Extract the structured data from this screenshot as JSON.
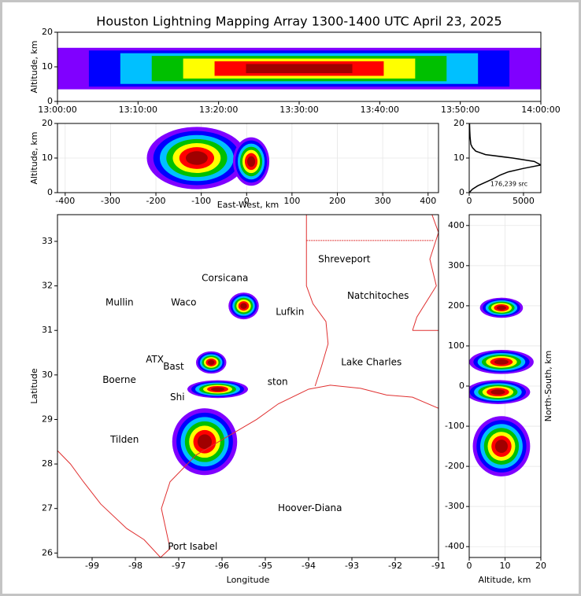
{
  "title": "Houston Lightning Mapping Array 1300-1400 UTC April 23, 2025",
  "chart_data": [
    {
      "type": "band",
      "ylabel": "Altitude, km",
      "xlim": [
        0,
        60
      ],
      "ylim": [
        0,
        20
      ],
      "xticks": [
        {
          "value": 0,
          "label": "13:00:00"
        },
        {
          "value": 10,
          "label": "13:10:00"
        },
        {
          "value": 20,
          "label": "13:20:00"
        },
        {
          "value": 30,
          "label": "13:30:00"
        },
        {
          "value": 40,
          "label": "13:40:00"
        },
        {
          "value": 50,
          "label": "13:50:00"
        },
        {
          "value": 60,
          "label": "14:00:00"
        }
      ],
      "yticks": [
        0,
        10,
        20
      ],
      "cells": [
        {
          "x": 30,
          "y": 9.5,
          "rx": 30,
          "ry": 6
        }
      ]
    },
    {
      "type": "density",
      "xlabel": "East-West, km",
      "ylabel": "Altitude, km",
      "xlim": [
        -417,
        423
      ],
      "ylim": [
        0,
        20
      ],
      "grid": true,
      "xticks": [
        -400,
        -300,
        -200,
        -100,
        0,
        100,
        200,
        300,
        400
      ],
      "yticks": [
        0,
        10,
        20
      ],
      "cells": [
        {
          "x": -110,
          "y": 10,
          "rx": 110,
          "ry": 9
        },
        {
          "x": 10,
          "y": 9,
          "rx": 40,
          "ry": 7
        }
      ]
    },
    {
      "type": "line",
      "annotation": "176,239 src",
      "xlim": [
        0,
        6600
      ],
      "ylim": [
        0,
        20
      ],
      "grid": true,
      "xticks": [
        0,
        5000
      ],
      "yticks": [
        0,
        10,
        20
      ],
      "counts": [
        0,
        300,
        800,
        1500,
        2200,
        2800,
        3600,
        5000,
        6600,
        6000,
        4000,
        1500,
        600,
        300,
        150,
        80,
        50,
        30
      ],
      "altitudes": [
        0,
        1,
        2,
        3,
        4,
        5,
        6,
        7,
        8,
        9,
        10,
        11,
        12,
        13,
        14,
        16,
        18,
        20
      ]
    },
    {
      "type": "map",
      "xlabel": "Longitude",
      "ylabel": "Latitude",
      "xlim": [
        -99.8,
        -91
      ],
      "ylim": [
        25.9,
        33.6
      ],
      "xticks": [
        -99,
        -98,
        -97,
        -96,
        -95,
        -94,
        -93,
        -92,
        -91
      ],
      "yticks": [
        26,
        27,
        28,
        29,
        30,
        31,
        32,
        33
      ],
      "cells": [
        {
          "x": -95.5,
          "y": 31.55,
          "rx": 0.35,
          "ry": 0.3
        },
        {
          "x": -96.25,
          "y": 30.28,
          "rx": 0.35,
          "ry": 0.25
        },
        {
          "x": -96.1,
          "y": 29.68,
          "rx": 0.7,
          "ry": 0.2
        },
        {
          "x": -96.4,
          "y": 28.5,
          "rx": 0.75,
          "ry": 0.75
        }
      ],
      "cities": [
        {
          "name": "Shreveport",
          "lon": -93.78,
          "lat": 32.59,
          "color": "#000000"
        },
        {
          "name": "Corsicana",
          "lon": -96.47,
          "lat": 32.17,
          "color": "#000000"
        },
        {
          "name": "Mullin",
          "lon": -98.69,
          "lat": 31.62,
          "color": "#f08040"
        },
        {
          "name": "Waco",
          "lon": -97.18,
          "lat": 31.62,
          "color": "#000000"
        },
        {
          "name": "Natchitoches",
          "lon": -93.11,
          "lat": 31.77,
          "color": "#000000"
        },
        {
          "name": "Lufkin",
          "lon": -94.76,
          "lat": 31.41,
          "color": "#000000"
        },
        {
          "name": "Lake Charles",
          "lon": -93.25,
          "lat": 30.28,
          "color": "#000000"
        },
        {
          "name": "ATX",
          "lon": -97.76,
          "lat": 30.34,
          "color": "#f08040"
        },
        {
          "name": "Bast",
          "lon": -97.36,
          "lat": 30.18,
          "color": "#000000"
        },
        {
          "name": "Boerne",
          "lon": -98.76,
          "lat": 29.88,
          "color": "#000000"
        },
        {
          "name": "Shi",
          "lon": -97.2,
          "lat": 29.49,
          "color": "#000000"
        },
        {
          "name": "ston",
          "lon": -94.95,
          "lat": 29.84,
          "color": "#e0a000"
        },
        {
          "name": "Tilden",
          "lon": -98.58,
          "lat": 28.54,
          "color": "#000000"
        },
        {
          "name": "Hoover-Diana",
          "lon": -94.71,
          "lat": 27.0,
          "color": "#0000e0"
        },
        {
          "name": "Port Isabel",
          "lon": -97.25,
          "lat": 26.14,
          "color": "#000000"
        }
      ]
    },
    {
      "type": "density",
      "xlabel": "Altitude, km",
      "ylabel": "North-South, km",
      "xlim": [
        0,
        20
      ],
      "ylim": [
        -427,
        427
      ],
      "grid": true,
      "xticks": [
        0,
        10,
        20
      ],
      "yticks": [
        -400,
        -300,
        -200,
        -100,
        0,
        100,
        200,
        300,
        400
      ],
      "cells": [
        {
          "x": 9,
          "y": 195,
          "rx": 6,
          "ry": 25
        },
        {
          "x": 9,
          "y": 60,
          "rx": 9,
          "ry": 30
        },
        {
          "x": 8,
          "y": -15,
          "rx": 9,
          "ry": 30
        },
        {
          "x": 9,
          "y": -150,
          "rx": 8,
          "ry": 75
        }
      ]
    }
  ]
}
